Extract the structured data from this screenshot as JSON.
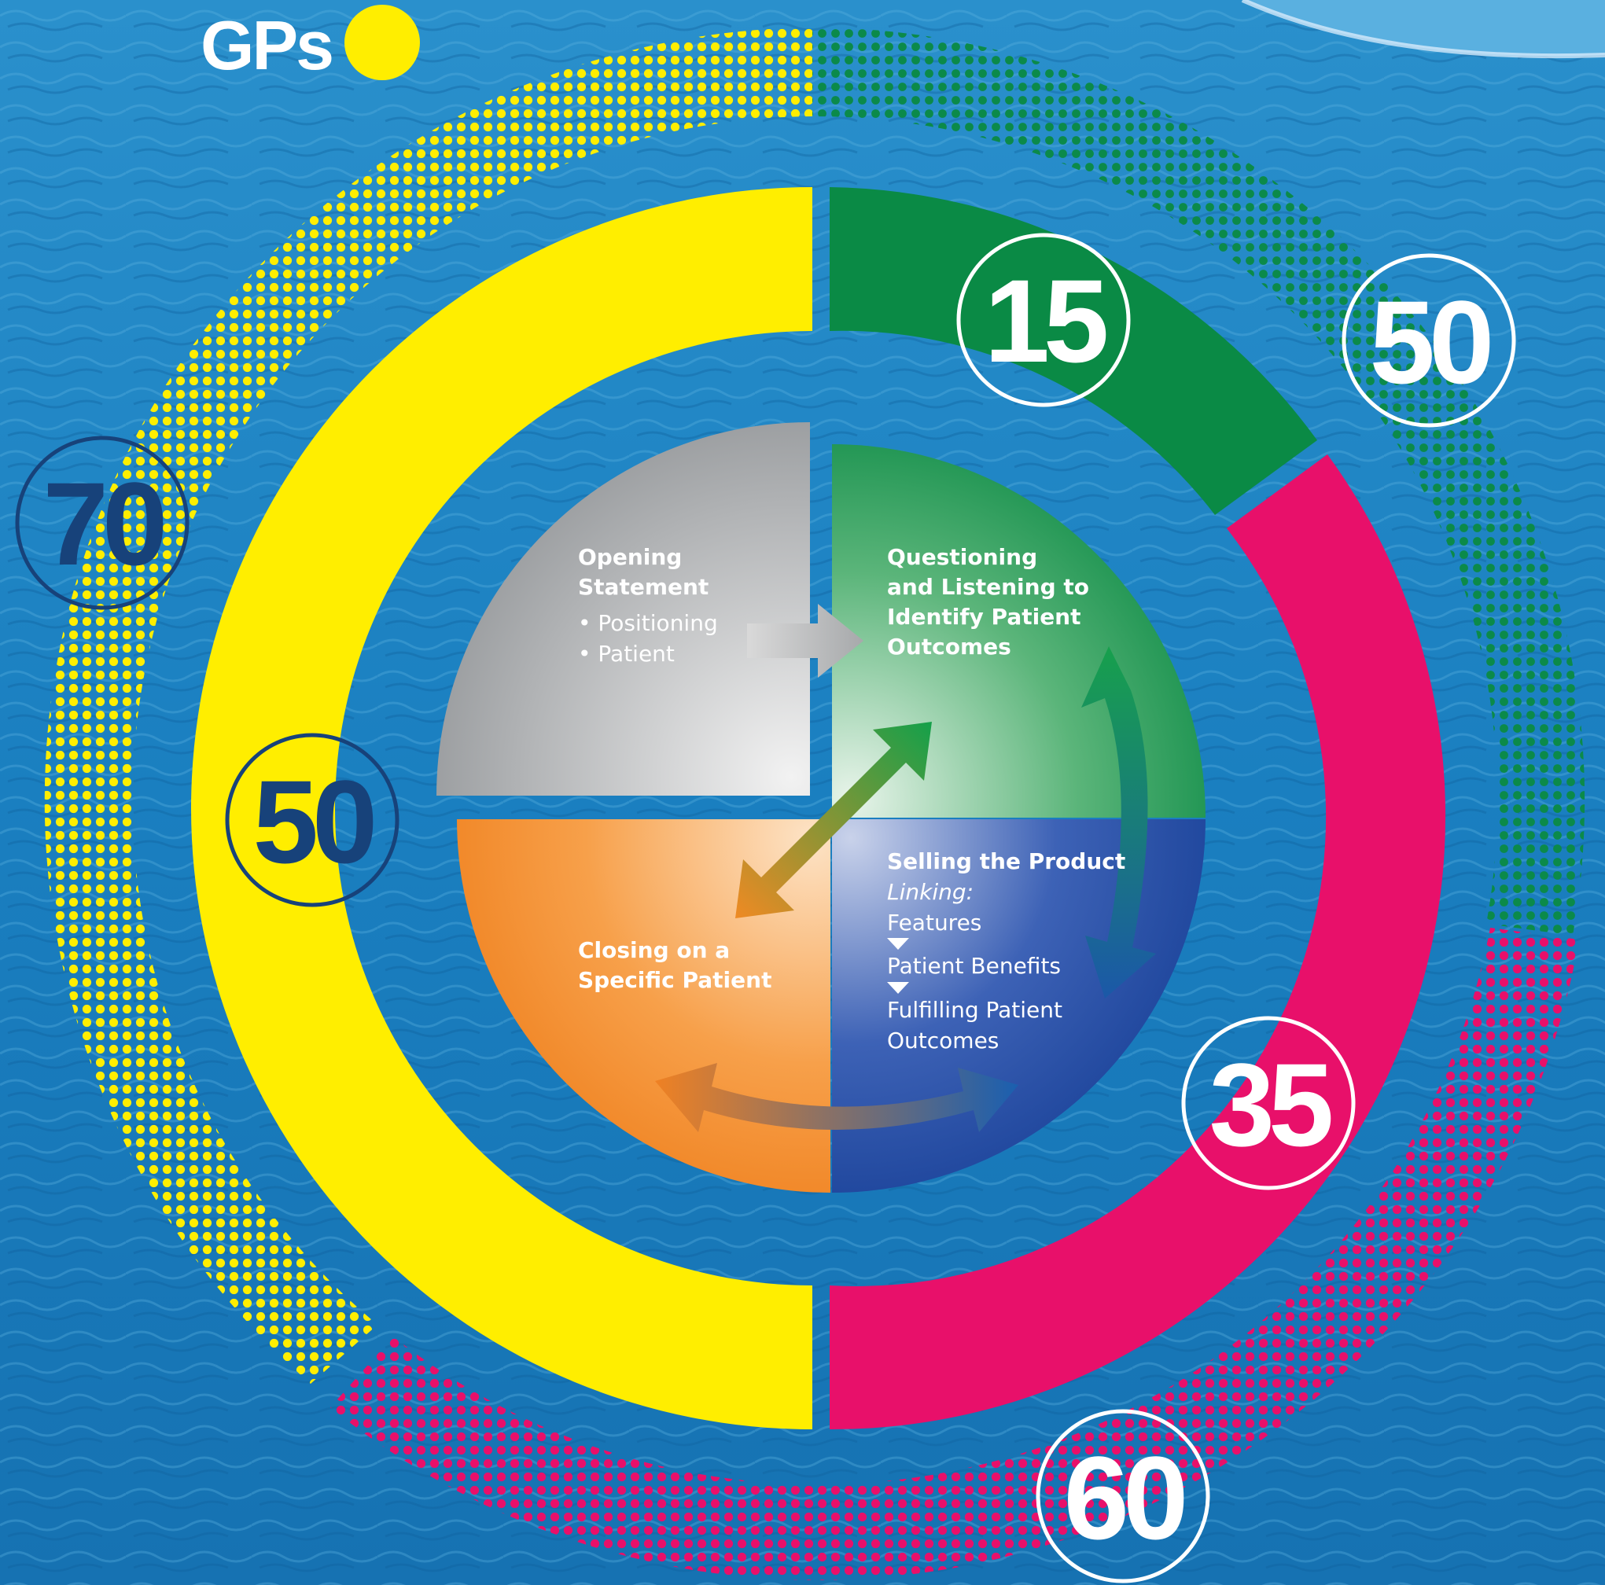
{
  "legend": {
    "label": "GPs",
    "swatch_color": "#ffee00"
  },
  "colors": {
    "yellow": "#ffee00",
    "green": "#0a8a45",
    "magenta": "#e8106a",
    "navy": "#17427a",
    "white": "#ffffff"
  },
  "outer_ring_values": {
    "left": "70",
    "right": "50",
    "bottom": "60"
  },
  "inner_ring_values": {
    "left": "50",
    "top_right": "15",
    "bottom_right": "35"
  },
  "quadrants": {
    "opening": {
      "title_line1": "Opening",
      "title_line2": "Statement",
      "bullet1": "• Positioning",
      "bullet2": "• Patient"
    },
    "questioning": {
      "line1": "Questioning",
      "line2": "and Listening to",
      "line3": "Identify Patient",
      "line4": "Outcomes"
    },
    "selling": {
      "title": "Selling the Product",
      "linking": "Linking:",
      "item1": "Features",
      "item2": "Patient Benefits",
      "item3": "Fulfilling Patient",
      "item4": "Outcomes"
    },
    "closing": {
      "line1": "Closing on a",
      "line2": "Specific Patient"
    }
  }
}
